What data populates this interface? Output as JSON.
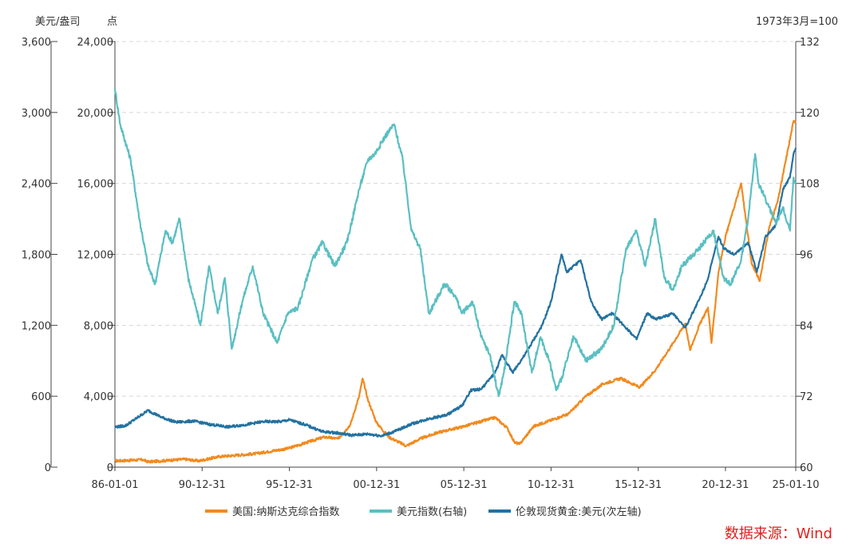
{
  "chart_data": {
    "type": "line",
    "units": {
      "outer_left": "美元/盎司",
      "inner_left": "点",
      "right": "1973年3月=100"
    },
    "x_ticks": [
      "86-01-01",
      "90-12-31",
      "95-12-31",
      "00-12-31",
      "05-12-31",
      "10-12-31",
      "15-12-31",
      "20-12-31",
      "25-01-10"
    ],
    "x_range": [
      1986.0,
      2025.03
    ],
    "axes": {
      "gold_left": {
        "ticks": [
          "0",
          "600",
          "1,200",
          "1,800",
          "2,400",
          "3,000",
          "3,600"
        ],
        "range": [
          0,
          3600
        ]
      },
      "nasdaq_left": {
        "ticks": [
          "0",
          "4,000",
          "8,000",
          "12,000",
          "16,000",
          "20,000",
          "24,000"
        ],
        "range": [
          0,
          24000
        ]
      },
      "dollar_right": {
        "ticks": [
          "60",
          "72",
          "84",
          "96",
          "108",
          "120",
          "132"
        ],
        "range": [
          60,
          132
        ]
      }
    },
    "series": [
      {
        "name": "美国:纳斯达克综合指数",
        "axis": "nasdaq_left",
        "color": "#f28a1e",
        "x": [
          1986.0,
          1987.6,
          1987.9,
          1990.0,
          1990.8,
          1992.0,
          1994.0,
          1995.9,
          1998.0,
          1998.8,
          1999.5,
          2000.0,
          2000.2,
          2000.5,
          2001.0,
          2001.7,
          2002.7,
          2003.5,
          2004.5,
          2006.0,
          2007.8,
          2008.5,
          2008.9,
          2009.2,
          2010.0,
          2011.0,
          2012.0,
          2013.0,
          2014.0,
          2015.0,
          2016.1,
          2017.0,
          2018.0,
          2018.7,
          2018.97,
          2019.5,
          2020.0,
          2020.2,
          2020.6,
          2021.0,
          2021.9,
          2022.5,
          2022.97,
          2023.5,
          2024.0,
          2024.6,
          2024.9,
          2025.03
        ],
        "values": [
          350,
          420,
          300,
          450,
          350,
          600,
          750,
          1050,
          1700,
          1600,
          2400,
          4000,
          5000,
          3800,
          2500,
          1700,
          1200,
          1600,
          1950,
          2300,
          2800,
          2200,
          1400,
          1300,
          2300,
          2650,
          3000,
          4000,
          4700,
          5000,
          4500,
          5500,
          7000,
          8100,
          6600,
          8000,
          9000,
          7000,
          11000,
          13000,
          16000,
          11500,
          10500,
          13500,
          15000,
          18000,
          19500,
          19500
        ]
      },
      {
        "name": "美元指数(右轴)",
        "axis": "dollar_right",
        "color": "#5bbfc2",
        "x": [
          1986.0,
          1986.3,
          1986.9,
          1987.4,
          1987.9,
          1988.3,
          1988.9,
          1989.3,
          1989.7,
          1990.2,
          1990.9,
          1991.4,
          1991.9,
          1992.3,
          1992.7,
          1993.3,
          1993.9,
          1994.5,
          1995.3,
          1995.9,
          1996.5,
          1997.3,
          1997.9,
          1998.6,
          1999.3,
          2000.0,
          2000.5,
          2000.9,
          2001.5,
          2002.0,
          2002.5,
          2003.0,
          2003.5,
          2004.0,
          2004.9,
          2005.5,
          2005.9,
          2006.5,
          2007.0,
          2007.5,
          2008.0,
          2008.3,
          2008.6,
          2008.9,
          2009.3,
          2009.9,
          2010.4,
          2010.9,
          2011.3,
          2011.6,
          2012.3,
          2013.0,
          2013.9,
          2014.6,
          2015.3,
          2015.9,
          2016.4,
          2016.97,
          2017.5,
          2018.0,
          2018.5,
          2019.5,
          2020.3,
          2020.9,
          2021.3,
          2021.9,
          2022.3,
          2022.7,
          2022.9,
          2023.5,
          2023.9,
          2024.3,
          2024.7,
          2024.9,
          2025.03
        ],
        "values": [
          124,
          118,
          112,
          102,
          94,
          91,
          100,
          98,
          102,
          92,
          84,
          94,
          86,
          92,
          80,
          88,
          94,
          86,
          81,
          86,
          87,
          95,
          98,
          94,
          98,
          107,
          112,
          113,
          116,
          118,
          112,
          100,
          97,
          86,
          91,
          89,
          86,
          88,
          82,
          79,
          72,
          76,
          82,
          88,
          86,
          76,
          82,
          78,
          73,
          75,
          82,
          78,
          80,
          84,
          97,
          100,
          94,
          102,
          92,
          90,
          94,
          97,
          100,
          92,
          91,
          95,
          102,
          113,
          108,
          104,
          101,
          104,
          100,
          109,
          108
        ]
      },
      {
        "name": "伦敦现货黄金:美元(次左轴)",
        "axis": "gold_left",
        "color": "#2372a0",
        "x": [
          1986.0,
          1986.6,
          1987.5,
          1987.9,
          1988.7,
          1989.5,
          1990.5,
          1991.5,
          1992.5,
          1993.5,
          1994.5,
          1995.5,
          1996.0,
          1996.9,
          1997.9,
          1998.7,
          1999.6,
          2000.5,
          2001.3,
          2002.0,
          2003.0,
          2004.0,
          2005.0,
          2005.9,
          2006.4,
          2007.0,
          2007.8,
          2008.2,
          2008.8,
          2009.5,
          2010.5,
          2011.0,
          2011.6,
          2011.9,
          2012.7,
          2013.3,
          2013.9,
          2014.5,
          2015.5,
          2015.9,
          2016.5,
          2017.0,
          2018.0,
          2018.7,
          2019.6,
          2020.0,
          2020.6,
          2020.9,
          2021.5,
          2022.3,
          2022.8,
          2023.3,
          2023.9,
          2024.3,
          2024.7,
          2024.9,
          2025.03
        ],
        "values": [
          340,
          350,
          440,
          480,
          420,
          380,
          390,
          360,
          340,
          360,
          385,
          385,
          400,
          360,
          300,
          290,
          270,
          280,
          265,
          300,
          365,
          410,
          440,
          520,
          650,
          660,
          800,
          950,
          800,
          950,
          1200,
          1400,
          1800,
          1650,
          1750,
          1400,
          1250,
          1300,
          1150,
          1080,
          1300,
          1250,
          1300,
          1180,
          1450,
          1600,
          1950,
          1850,
          1800,
          1900,
          1650,
          1950,
          2050,
          2350,
          2450,
          2650,
          2700
        ]
      }
    ],
    "legend": [
      {
        "label": "美国:纳斯达克综合指数",
        "color": "#f28a1e"
      },
      {
        "label": "美元指数(右轴)",
        "color": "#5bbfc2"
      },
      {
        "label": "伦敦现货黄金:美元(次左轴)",
        "color": "#2372a0"
      }
    ],
    "source": "数据来源：Wind"
  }
}
